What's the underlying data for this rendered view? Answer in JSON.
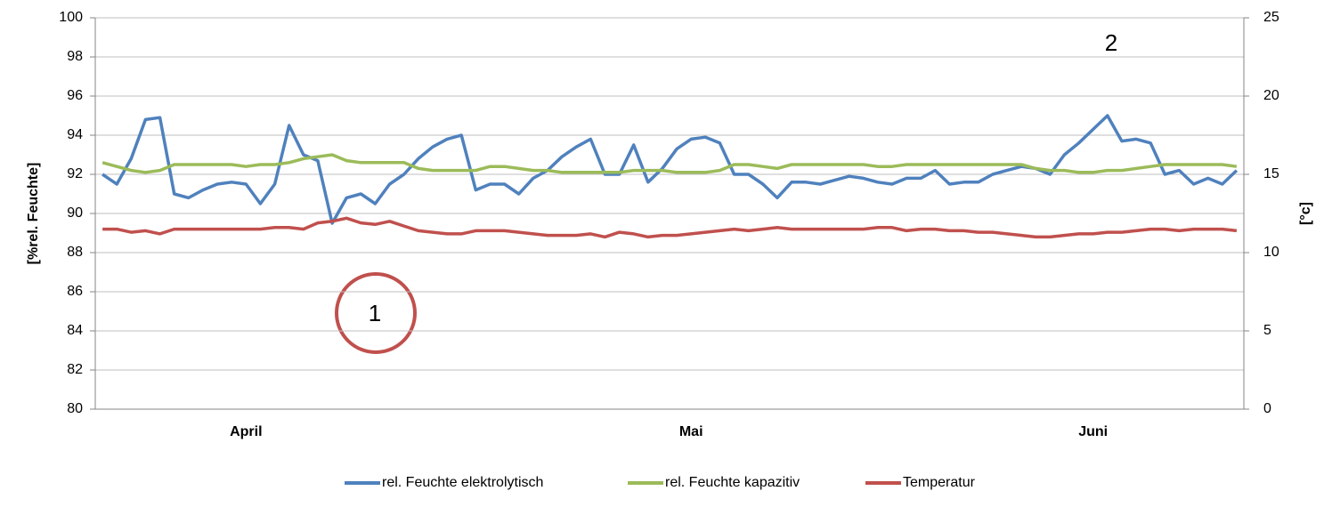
{
  "chart_data": {
    "type": "line",
    "y_label": "[%rel. Feuchte]",
    "y2_label": "[°c]",
    "annotations": [
      "1",
      "2"
    ],
    "categories": [
      null,
      null,
      null,
      null,
      null,
      null,
      null,
      null,
      null,
      null,
      "April",
      null,
      null,
      null,
      null,
      null,
      null,
      null,
      null,
      null,
      null,
      null,
      null,
      null,
      null,
      null,
      null,
      null,
      null,
      null,
      null,
      null,
      null,
      null,
      null,
      null,
      null,
      null,
      null,
      null,
      null,
      "Mai",
      null,
      null,
      null,
      null,
      null,
      null,
      null,
      null,
      null,
      null,
      null,
      null,
      null,
      null,
      null,
      null,
      null,
      null,
      null,
      null,
      null,
      null,
      null,
      null,
      null,
      null,
      null,
      "Juni",
      null,
      null,
      null,
      null,
      null,
      null,
      null,
      null,
      null,
      null
    ],
    "ylim": [
      80,
      100
    ],
    "yticks": [
      80,
      82,
      84,
      86,
      88,
      90,
      92,
      94,
      96,
      98,
      100
    ],
    "y2lim": [
      0,
      25
    ],
    "y2ticks": [
      0,
      5,
      10,
      15,
      20,
      25
    ],
    "grid": true,
    "legend": "bottom",
    "series": [
      {
        "name": "rel. Feuchte elektrolytisch",
        "color": "#4f81bd",
        "values": [
          92,
          91.5,
          92.8,
          94.8,
          94.9,
          91,
          90.8,
          91.2,
          91.5,
          91.6,
          91.5,
          90.5,
          91.5,
          94.5,
          93,
          92.7,
          89.5,
          90.8,
          91,
          90.5,
          91.5,
          92,
          92.8,
          93.4,
          93.8,
          94,
          91.2,
          91.5,
          91.5,
          91,
          91.8,
          92.2,
          92.9,
          93.4,
          93.8,
          92,
          92,
          93.5,
          91.6,
          92.3,
          93.3,
          93.8,
          93.9,
          93.6,
          92,
          92,
          91.5,
          90.8,
          91.6,
          91.6,
          91.5,
          91.7,
          91.9,
          91.8,
          91.6,
          91.5,
          91.8,
          91.8,
          92.2,
          91.5,
          91.6,
          91.6,
          92,
          92.2,
          92.4,
          92.3,
          92,
          93,
          93.6,
          94.3,
          95,
          93.7,
          93.8,
          93.6,
          92,
          92.2,
          91.5,
          91.8,
          91.5,
          92.2
        ]
      },
      {
        "name": "rel. Feuchte kapazitiv",
        "color": "#9bbb59",
        "values": [
          92.6,
          92.4,
          92.2,
          92.1,
          92.2,
          92.5,
          92.5,
          92.5,
          92.5,
          92.5,
          92.4,
          92.5,
          92.5,
          92.6,
          92.8,
          92.9,
          93,
          92.7,
          92.6,
          92.6,
          92.6,
          92.6,
          92.3,
          92.2,
          92.2,
          92.2,
          92.2,
          92.4,
          92.4,
          92.3,
          92.2,
          92.2,
          92.1,
          92.1,
          92.1,
          92.1,
          92.1,
          92.2,
          92.2,
          92.2,
          92.1,
          92.1,
          92.1,
          92.2,
          92.5,
          92.5,
          92.4,
          92.3,
          92.5,
          92.5,
          92.5,
          92.5,
          92.5,
          92.5,
          92.4,
          92.4,
          92.5,
          92.5,
          92.5,
          92.5,
          92.5,
          92.5,
          92.5,
          92.5,
          92.5,
          92.3,
          92.2,
          92.2,
          92.1,
          92.1,
          92.2,
          92.2,
          92.3,
          92.4,
          92.5,
          92.5,
          92.5,
          92.5,
          92.5,
          92.4
        ]
      },
      {
        "name": "Temperatur",
        "color": "#c0504d",
        "axis": "y2",
        "values": [
          11.5,
          11.5,
          11.3,
          11.4,
          11.2,
          11.5,
          11.5,
          11.5,
          11.5,
          11.5,
          11.5,
          11.5,
          11.6,
          11.6,
          11.5,
          11.9,
          12,
          12.2,
          11.9,
          11.8,
          12,
          11.7,
          11.4,
          11.3,
          11.2,
          11.2,
          11.4,
          11.4,
          11.4,
          11.3,
          11.2,
          11.1,
          11.1,
          11.1,
          11.2,
          11,
          11.3,
          11.2,
          11,
          11.1,
          11.1,
          11.2,
          11.3,
          11.4,
          11.5,
          11.4,
          11.5,
          11.6,
          11.5,
          11.5,
          11.5,
          11.5,
          11.5,
          11.5,
          11.6,
          11.6,
          11.4,
          11.5,
          11.5,
          11.4,
          11.4,
          11.3,
          11.3,
          11.2,
          11.1,
          11,
          11,
          11.1,
          11.2,
          11.2,
          11.3,
          11.3,
          11.4,
          11.5,
          11.5,
          11.4,
          11.5,
          11.5,
          11.5,
          11.4
        ]
      }
    ]
  }
}
